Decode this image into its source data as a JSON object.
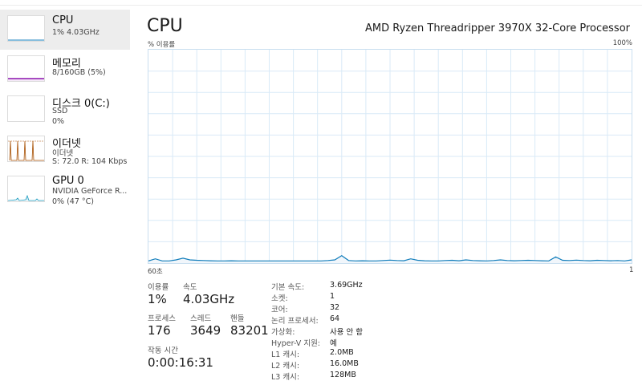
{
  "sidebar": {
    "items": [
      {
        "title": "CPU",
        "sub1": "1% 4.03GHz",
        "sub2": ""
      },
      {
        "title": "메모리",
        "sub1": "8/160GB (5%)",
        "sub2": ""
      },
      {
        "title": "디스크 0(C:)",
        "sub1": "SSD",
        "sub2": "0%"
      },
      {
        "title": "이더넷",
        "sub1": "이더넷",
        "sub2": "S: 72.0 R: 104 Kbps"
      },
      {
        "title": "GPU 0",
        "sub1": "NVIDIA GeForce R...",
        "sub2": "0% (47 °C)"
      }
    ]
  },
  "main": {
    "title": "CPU",
    "processor": "AMD Ryzen Threadripper 3970X 32-Core Processor",
    "graph": {
      "y_label": "% 이용률",
      "y_max_label": "100%",
      "x_left_label": "60초",
      "x_right_label": "1",
      "series": [
        1,
        2,
        1,
        1,
        1.5,
        2.3,
        1.5,
        1.3,
        1.2,
        1.1,
        1,
        1,
        1.1,
        1,
        1,
        1,
        1,
        1,
        1,
        1,
        1,
        1,
        1,
        1,
        1,
        1,
        1.2,
        1.5,
        3.5,
        1.2,
        1,
        1.1,
        1,
        1,
        1.2,
        1.4,
        1.2,
        1.1,
        2,
        1.3,
        1.1,
        1,
        1,
        1.2,
        1.3,
        1.1,
        1.5,
        1.2,
        1.1,
        1,
        1.2,
        1.5,
        1.2,
        1.1,
        1.2,
        1.3,
        1.2,
        1.1,
        1.0,
        2.9,
        1.3,
        1.2,
        1.4,
        1.2,
        1.1,
        1.3,
        1.2,
        1.1,
        1.2,
        1.0,
        1.5
      ]
    },
    "stats": {
      "usage_label": "이용률",
      "usage_value": "1%",
      "speed_label": "속도",
      "speed_value": "4.03GHz",
      "process_label": "프로세스",
      "process_value": "176",
      "thread_label": "스레드",
      "thread_value": "3649",
      "handle_label": "핸들",
      "handle_value": "83201",
      "uptime_label": "작동 시간",
      "uptime_value": "0:00:16:31"
    },
    "specs": [
      {
        "key": "기본 속도:",
        "value": "3.69GHz"
      },
      {
        "key": "소켓:",
        "value": "1"
      },
      {
        "key": "코어:",
        "value": "32"
      },
      {
        "key": "논리 프로세서:",
        "value": "64"
      },
      {
        "key": "가상화:",
        "value": "사용 안 함"
      },
      {
        "key": "Hyper-V 지원:",
        "value": "예"
      },
      {
        "key": "L1 캐시:",
        "value": "2.0MB"
      },
      {
        "key": "L2 캐시:",
        "value": "16.0MB"
      },
      {
        "key": "L3 캐시:",
        "value": "128MB"
      }
    ]
  },
  "colors": {
    "cpu_line": "#117dbb",
    "grid": "#d9eaf7",
    "memory": "#8b12ae",
    "ethernet": "#a74f01",
    "gpu": "#1a9bbf"
  }
}
